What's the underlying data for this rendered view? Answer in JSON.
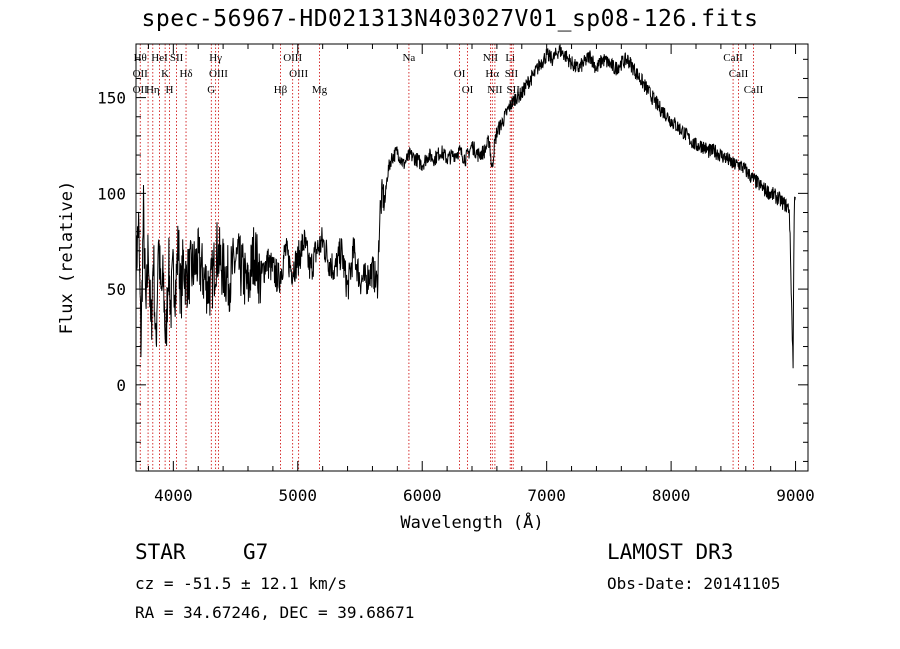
{
  "chart_data": {
    "type": "line",
    "title": "spec-56967-HD021313N403027V01_sp08-126.fits",
    "xlabel": "Wavelength (Å)",
    "ylabel": "Flux (relative)",
    "xlim": [
      3700,
      9100
    ],
    "ylim": [
      -45,
      178
    ],
    "xticks": [
      4000,
      5000,
      6000,
      7000,
      8000,
      9000
    ],
    "yticks": [
      0,
      50,
      100,
      150
    ],
    "series": [
      {
        "name": "spectrum",
        "x": [
          3700,
          3720,
          3740,
          3760,
          3780,
          3800,
          3820,
          3840,
          3860,
          3880,
          3900,
          3920,
          3940,
          3960,
          3980,
          4000,
          4020,
          4040,
          4060,
          4080,
          4100,
          4150,
          4200,
          4250,
          4300,
          4350,
          4400,
          4450,
          4500,
          4550,
          4600,
          4650,
          4700,
          4750,
          4800,
          4850,
          4900,
          4950,
          5000,
          5050,
          5100,
          5150,
          5200,
          5250,
          5300,
          5350,
          5400,
          5450,
          5500,
          5550,
          5600,
          5640,
          5660,
          5680,
          5700,
          5720,
          5750,
          5800,
          5850,
          5900,
          5950,
          6000,
          6050,
          6100,
          6150,
          6200,
          6250,
          6300,
          6350,
          6400,
          6450,
          6500,
          6540,
          6560,
          6580,
          6600,
          6650,
          6700,
          6750,
          6800,
          6850,
          6900,
          6950,
          7000,
          7050,
          7100,
          7150,
          7200,
          7250,
          7300,
          7350,
          7400,
          7450,
          7500,
          7550,
          7600,
          7650,
          7700,
          7750,
          7800,
          7850,
          7900,
          7950,
          8000,
          8050,
          8100,
          8150,
          8200,
          8250,
          8300,
          8350,
          8400,
          8450,
          8500,
          8550,
          8600,
          8650,
          8700,
          8750,
          8800,
          8850,
          8900,
          8950,
          8980,
          8990,
          9000
        ],
        "y": [
          60,
          85,
          20,
          90,
          35,
          75,
          25,
          70,
          15,
          80,
          45,
          55,
          20,
          65,
          40,
          60,
          50,
          75,
          45,
          65,
          55,
          60,
          65,
          55,
          50,
          70,
          60,
          55,
          65,
          60,
          50,
          70,
          55,
          65,
          60,
          55,
          70,
          60,
          65,
          75,
          60,
          70,
          75,
          65,
          60,
          70,
          50,
          70,
          55,
          55,
          60,
          52,
          90,
          100,
          95,
          110,
          118,
          122,
          115,
          120,
          118,
          115,
          120,
          118,
          122,
          118,
          120,
          122,
          118,
          125,
          120,
          122,
          128,
          112,
          125,
          132,
          138,
          145,
          150,
          152,
          158,
          162,
          168,
          172,
          170,
          175,
          172,
          168,
          165,
          168,
          172,
          165,
          170,
          168,
          165,
          168,
          170,
          165,
          160,
          155,
          150,
          145,
          142,
          138,
          135,
          132,
          128,
          125,
          125,
          122,
          122,
          120,
          118,
          115,
          115,
          112,
          108,
          105,
          102,
          100,
          98,
          95,
          92,
          10,
          100,
          98
        ]
      }
    ],
    "lines": [
      {
        "wavelength": 3734,
        "labels": [
          "Hθ",
          "OII",
          "OII"
        ]
      },
      {
        "wavelength": 3797,
        "labels": [
          ""
        ]
      },
      {
        "wavelength": 3835,
        "labels": [
          "Hη"
        ]
      },
      {
        "wavelength": 3889,
        "labels": [
          "HeI"
        ]
      },
      {
        "wavelength": 3934,
        "labels": [
          "K"
        ]
      },
      {
        "wavelength": 3969,
        "labels": [
          "H"
        ]
      },
      {
        "wavelength": 4026,
        "labels": [
          "SII"
        ]
      },
      {
        "wavelength": 4102,
        "labels": [
          "Hδ"
        ]
      },
      {
        "wavelength": 4305,
        "labels": [
          "G"
        ]
      },
      {
        "wavelength": 4340,
        "labels": [
          "Hγ"
        ]
      },
      {
        "wavelength": 4363,
        "labels": [
          "OIII"
        ]
      },
      {
        "wavelength": 4861,
        "labels": [
          "Hβ"
        ]
      },
      {
        "wavelength": 4959,
        "labels": [
          "OIII"
        ]
      },
      {
        "wavelength": 5007,
        "labels": [
          "OIII"
        ]
      },
      {
        "wavelength": 5175,
        "labels": [
          "Mg"
        ]
      },
      {
        "wavelength": 5893,
        "labels": [
          "Na"
        ]
      },
      {
        "wavelength": 6300,
        "labels": [
          "OI"
        ]
      },
      {
        "wavelength": 6364,
        "labels": [
          "OI"
        ]
      },
      {
        "wavelength": 6548,
        "labels": [
          "NII"
        ]
      },
      {
        "wavelength": 6563,
        "labels": [
          "Hα"
        ]
      },
      {
        "wavelength": 6584,
        "labels": [
          "NII"
        ]
      },
      {
        "wavelength": 6707,
        "labels": [
          "Li"
        ]
      },
      {
        "wavelength": 6717,
        "labels": [
          "SII"
        ]
      },
      {
        "wavelength": 6731,
        "labels": [
          "SII"
        ]
      },
      {
        "wavelength": 8498,
        "labels": [
          "CaII"
        ]
      },
      {
        "wavelength": 8542,
        "labels": [
          "CaII"
        ]
      },
      {
        "wavelength": 8662,
        "labels": [
          "CaII"
        ]
      }
    ],
    "line_color": "#cc0000",
    "data_color": "#000000"
  },
  "info": {
    "object_type": "STAR",
    "spectral_class": "G7",
    "survey": "LAMOST DR3",
    "redshift": "cz = -51.5 ± 12.1 km/s",
    "obs_date": "Obs-Date: 20141105",
    "coords": "RA =  34.67246, DEC =  39.68671"
  }
}
